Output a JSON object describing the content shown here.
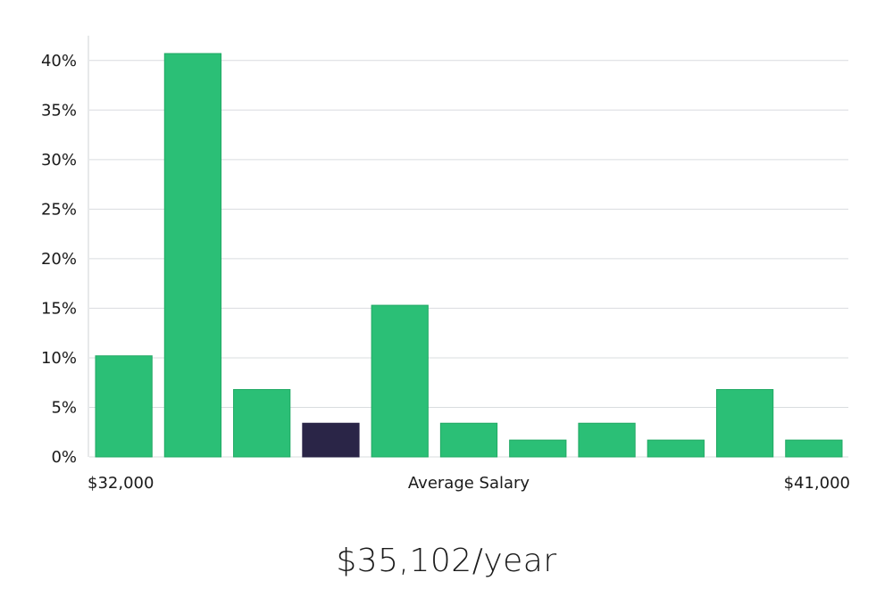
{
  "chart_data": {
    "type": "bar",
    "title": "",
    "xlabel": "Average Salary",
    "ylabel": "",
    "x_start_label": "$32,000",
    "x_end_label": "$41,000",
    "ylim": [
      0,
      42.5
    ],
    "yticks": [
      0,
      5,
      10,
      15,
      20,
      25,
      30,
      35,
      40
    ],
    "ytick_labels": [
      "0%",
      "5%",
      "10%",
      "15%",
      "20%",
      "25%",
      "30%",
      "35%",
      "40%"
    ],
    "values": [
      10.2,
      40.7,
      6.8,
      3.4,
      15.3,
      3.4,
      1.7,
      3.4,
      1.7,
      6.8,
      1.7
    ],
    "highlight_index": 3,
    "colors": {
      "bar": "#2bbf76",
      "bar_stroke": "#21a964",
      "highlight": "#2a2547",
      "grid": "#d9dcdf",
      "axis": "#cfd3d6"
    },
    "grid": true
  },
  "footer": {
    "salary_text": "$35,102/year"
  }
}
